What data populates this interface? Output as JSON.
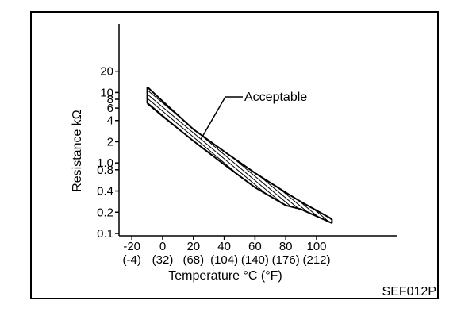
{
  "chart_data": {
    "type": "area",
    "title": "",
    "xlabel": "Temperature °C (°F)",
    "ylabel": "Resistance kΩ",
    "y_scale": "log",
    "xlim": [
      -30,
      125
    ],
    "ylim": [
      0.1,
      25
    ],
    "x_ticks": [
      {
        "value": -20,
        "celsius": "-20",
        "fahrenheit": "(-4)"
      },
      {
        "value": 0,
        "celsius": "0",
        "fahrenheit": "(32)"
      },
      {
        "value": 20,
        "celsius": "20",
        "fahrenheit": "(68)"
      },
      {
        "value": 40,
        "celsius": "40",
        "fahrenheit": "(104)"
      },
      {
        "value": 60,
        "celsius": "60",
        "fahrenheit": "(140)"
      },
      {
        "value": 80,
        "celsius": "80",
        "fahrenheit": "(176)"
      },
      {
        "value": 100,
        "celsius": "100",
        "fahrenheit": "(212)"
      }
    ],
    "y_ticks": [
      {
        "value": 20,
        "label": "20"
      },
      {
        "value": 10,
        "label": "10"
      },
      {
        "value": 8,
        "label": "8"
      },
      {
        "value": 6,
        "label": "6"
      },
      {
        "value": 4,
        "label": "4"
      },
      {
        "value": 2,
        "label": "2"
      },
      {
        "value": 1.0,
        "label": "1.0"
      },
      {
        "value": 0.8,
        "label": "0.8"
      },
      {
        "value": 0.4,
        "label": "0.4"
      },
      {
        "value": 0.2,
        "label": "0.2"
      },
      {
        "value": 0.1,
        "label": "0.1"
      }
    ],
    "series": [
      {
        "x": [
          -10,
          0,
          20,
          40,
          60,
          80,
          90,
          110
        ],
        "upper": [
          12.0,
          7.5,
          3.0,
          1.45,
          0.72,
          0.38,
          0.28,
          0.16
        ],
        "lower": [
          7.0,
          4.6,
          2.05,
          0.95,
          0.45,
          0.25,
          0.22,
          0.14
        ]
      }
    ],
    "annotations": [
      {
        "text": "Acceptable",
        "x": 25,
        "y": 2.2
      }
    ],
    "grid": false
  },
  "figure_code": "SEF012P"
}
